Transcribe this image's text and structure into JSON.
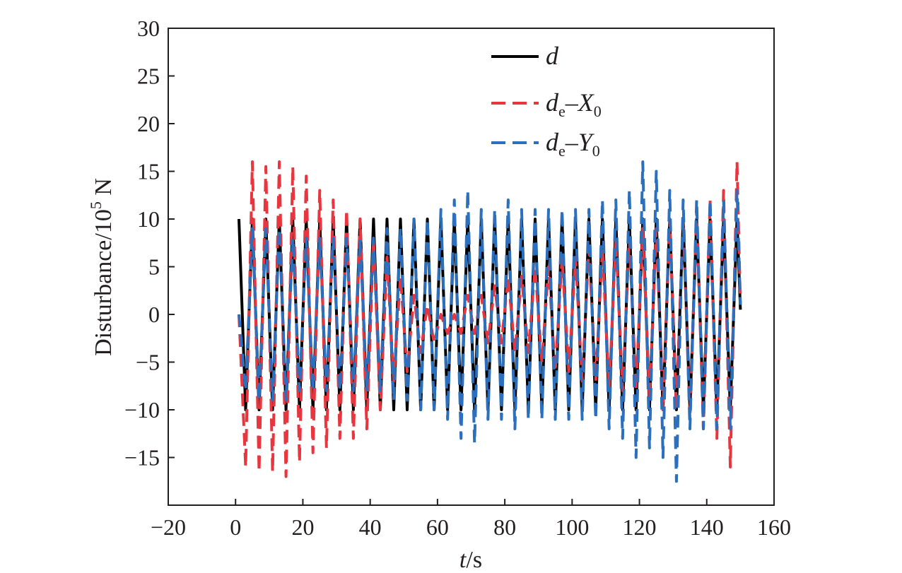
{
  "chart_data": {
    "type": "line",
    "xlabel": "t/s",
    "xlabel_parts": {
      "var": "t",
      "unit": "/s"
    },
    "ylabel": "Disturbance/10^5 N",
    "ylabel_parts": {
      "main": "Disturbance/10",
      "sup": "5",
      "unit": " N"
    },
    "xlim": [
      -20,
      160
    ],
    "ylim": [
      -20,
      30
    ],
    "xticks": [
      -20,
      0,
      20,
      40,
      60,
      80,
      100,
      120,
      140,
      160
    ],
    "yticks": [
      -15,
      -10,
      -5,
      0,
      5,
      10,
      15,
      20,
      25,
      30
    ],
    "xtick_labels": [
      "−20",
      "0",
      "20",
      "40",
      "60",
      "80",
      "100",
      "120",
      "140",
      "160"
    ],
    "ytick_labels": [
      "−15",
      "−10",
      "−5",
      "0",
      "5",
      "10",
      "15",
      "20",
      "25",
      "30"
    ],
    "grid": false,
    "legend_position": "top-right",
    "series": [
      {
        "name": "d",
        "label_main": "d",
        "color": "#000000",
        "style": "solid",
        "x": [
          1,
          3,
          5,
          7,
          9,
          11,
          13,
          15,
          17,
          19,
          21,
          23,
          25,
          27,
          29,
          31,
          33,
          35,
          37,
          39,
          41,
          43,
          45,
          47,
          49,
          51,
          53,
          55,
          57,
          59,
          61,
          63,
          65,
          67,
          69,
          71,
          73,
          75,
          77,
          79,
          81,
          83,
          85,
          87,
          89,
          91,
          93,
          95,
          97,
          99,
          101,
          103,
          105,
          107,
          109,
          111,
          113,
          115,
          117,
          119,
          121,
          123,
          125,
          127,
          129,
          131,
          133,
          135,
          137,
          139,
          141,
          143,
          145,
          147,
          149,
          150
        ],
        "y": [
          10,
          -10,
          10,
          -10,
          10,
          -10,
          10,
          -10,
          10,
          -10,
          10,
          -10,
          10,
          -10,
          10,
          -10,
          10,
          -10,
          10,
          -10,
          10,
          -10,
          10,
          -10,
          10,
          -10,
          10,
          -10,
          10,
          -10,
          10,
          -10,
          10,
          -10,
          10,
          -10,
          10,
          -10,
          10,
          -10,
          10,
          -10,
          10,
          -10,
          10,
          -10,
          10,
          -10,
          10,
          -10,
          10,
          -10,
          10,
          -10,
          10,
          -10,
          10,
          -10,
          10,
          -10,
          10,
          -10,
          10,
          -10,
          10,
          -10,
          10,
          -10,
          10,
          -10,
          10,
          -10,
          10,
          -10,
          10,
          0.5
        ]
      },
      {
        "name": "de-X0",
        "label_main": "d",
        "label_sub1": "e",
        "label_mid": "–X",
        "label_sub2": "0",
        "color": "#e8363f",
        "style": "dashed",
        "x": [
          1,
          3,
          5,
          7,
          9,
          11,
          13,
          15,
          17,
          19,
          21,
          23,
          25,
          27,
          29,
          31,
          33,
          35,
          37,
          39,
          41,
          43,
          45,
          47,
          49,
          51,
          53,
          55,
          57,
          59,
          61,
          63,
          65,
          67,
          69,
          71,
          73,
          75,
          77,
          79,
          81,
          83,
          85,
          87,
          89,
          91,
          93,
          95,
          97,
          99,
          101,
          103,
          105,
          107,
          109,
          111,
          113,
          115,
          117,
          119,
          121,
          123,
          125,
          127,
          129,
          131,
          133,
          135,
          137,
          139,
          141,
          143,
          145,
          147,
          149,
          150
        ],
        "y": [
          0,
          -16,
          16,
          -16.5,
          15.5,
          -16.5,
          16,
          -17,
          15.5,
          -15.5,
          14.5,
          -14.5,
          13,
          -14,
          12,
          -13,
          11,
          -13,
          10,
          -12,
          8,
          -10,
          6,
          -7,
          4,
          -6,
          2,
          -4,
          1,
          -3,
          0,
          -2,
          0,
          -2,
          2,
          -2,
          2,
          -3,
          3,
          -3,
          4,
          -4,
          4,
          -4,
          5,
          -5,
          5,
          -6,
          6,
          -6,
          6,
          -7,
          7,
          -7,
          7,
          -8,
          8,
          -8,
          8,
          -8,
          9,
          -9,
          9,
          -10,
          10,
          -10,
          10,
          -11,
          11,
          -12,
          12,
          -13,
          13,
          -16,
          16,
          1
        ]
      },
      {
        "name": "de-Y0",
        "label_main": "d",
        "label_sub1": "e",
        "label_mid": "–Y",
        "label_sub2": "0",
        "color": "#2b6fbd",
        "style": "dashed",
        "x": [
          1,
          3,
          5,
          7,
          9,
          11,
          13,
          15,
          17,
          19,
          21,
          23,
          25,
          27,
          29,
          31,
          33,
          35,
          37,
          39,
          41,
          43,
          45,
          47,
          49,
          51,
          53,
          55,
          57,
          59,
          61,
          63,
          65,
          67,
          69,
          71,
          73,
          75,
          77,
          79,
          81,
          83,
          85,
          87,
          89,
          91,
          93,
          95,
          97,
          99,
          101,
          103,
          105,
          107,
          109,
          111,
          113,
          115,
          117,
          119,
          121,
          123,
          125,
          127,
          129,
          131,
          133,
          135,
          137,
          139,
          141,
          143,
          145,
          147,
          149,
          150
        ],
        "y": [
          0,
          -8,
          9,
          -9,
          9,
          -9,
          9,
          -9,
          8,
          -8,
          8,
          -8,
          8,
          -8,
          8,
          -8,
          8,
          -8,
          8,
          -8,
          8,
          -8,
          9,
          -9,
          9,
          -9,
          10,
          -10,
          10,
          -10,
          11,
          -11,
          12,
          -13,
          13,
          -13.5,
          11,
          -11,
          11,
          -11,
          12,
          -12,
          11,
          -11,
          11,
          -11,
          11,
          -11,
          11,
          -11,
          11,
          -11,
          11,
          -11,
          12,
          -12,
          12,
          -13,
          13,
          -15,
          16,
          -14,
          15,
          -15,
          13,
          -17.5,
          12,
          -12,
          12,
          -12,
          12,
          -12,
          12,
          -12,
          13,
          1
        ]
      }
    ]
  }
}
